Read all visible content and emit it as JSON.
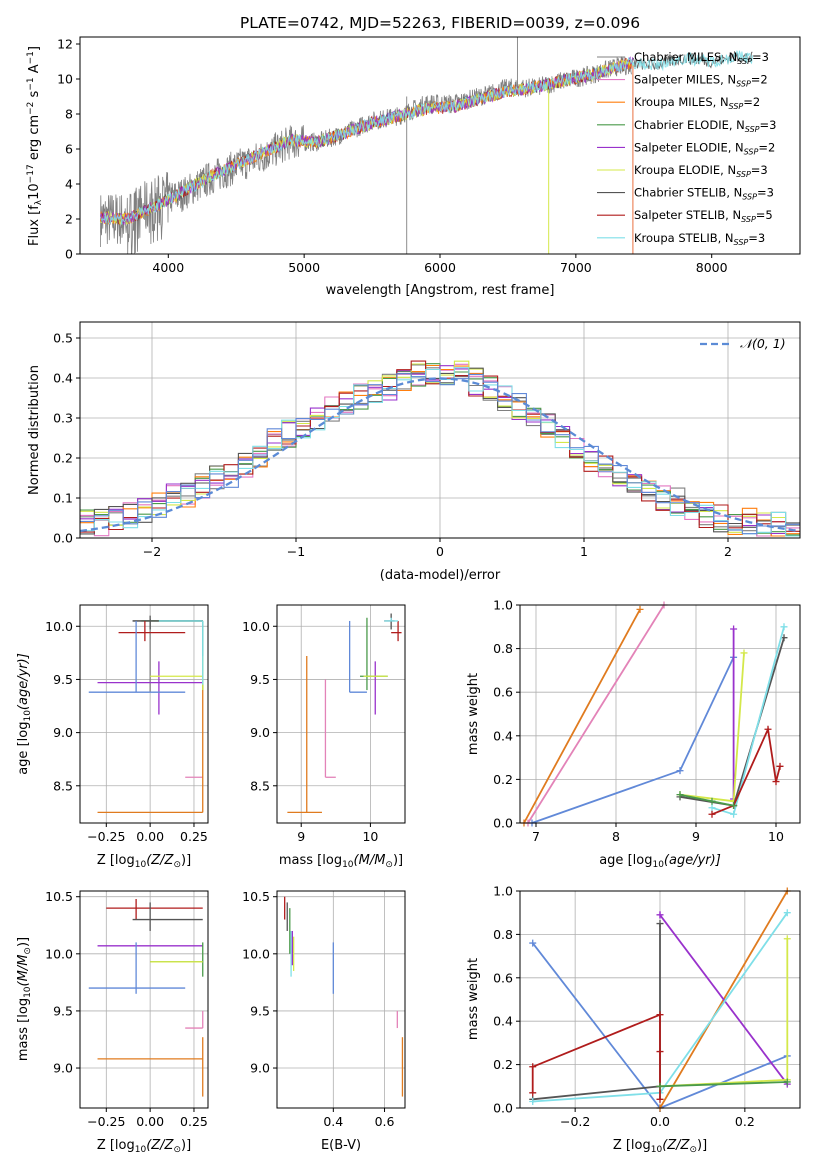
{
  "colors": {
    "chabrier_miles": "#808080",
    "salpeter_miles": "#e377c2",
    "kroupa_miles": "#ff7f0e",
    "chabrier_elodie": "#4a9a4a",
    "salpeter_elodie": "#9932cc",
    "kroupa_elodie": "#d4e84a",
    "chabrier_stelib": "#555555",
    "salpeter_stelib": "#b01c1c",
    "kroupa_stelib": "#7fdfe8",
    "gaussian": "#5b8bd6",
    "data": "#808080",
    "orange": "#e07b1f",
    "pink": "#e383b8",
    "blue": "#6189d8"
  },
  "chart_data": [
    {
      "type": "line",
      "panel": "spectrum",
      "title": "PLATE=0742, MJD=52263, FIBERID=0039, z=0.096",
      "xlabel": "wavelength [Angstrom, rest frame]",
      "ylabel": "Flux [f",
      "ylabel_sub": "λ",
      "ylabel_rest": "10",
      "ylabel_exp1": "−17",
      "ylabel_unit": " erg cm",
      "ylabel_exp2": "−2",
      "ylabel_unit2": " s",
      "ylabel_exp3": "−1",
      "ylabel_unit3": " A",
      "ylabel_exp4": "−1",
      "ylabel_end": "]",
      "xlim": [
        3350,
        8650
      ],
      "ylim": [
        0,
        12.4
      ],
      "xticks": [
        "4000",
        "5000",
        "6000",
        "7000",
        "8000"
      ],
      "yticks": [
        "0",
        "2",
        "4",
        "6",
        "8",
        "10",
        "12"
      ],
      "legend": [
        {
          "name": "Chabrier MILES, N",
          "sub": "SSP",
          "val": "=3",
          "color": "#808080"
        },
        {
          "name": "Salpeter MILES, N",
          "sub": "SSP",
          "val": "=2",
          "color": "#e377c2"
        },
        {
          "name": "Kroupa MILES, N",
          "sub": "SSP",
          "val": "=2",
          "color": "#ff7f0e"
        },
        {
          "name": "Chabrier ELODIE, N",
          "sub": "SSP",
          "val": "=3",
          "color": "#4a9a4a"
        },
        {
          "name": "Salpeter ELODIE, N",
          "sub": "SSP",
          "val": "=2",
          "color": "#9932cc"
        },
        {
          "name": "Kroupa ELODIE, N",
          "sub": "SSP",
          "val": "=3",
          "color": "#d4e84a"
        },
        {
          "name": "Chabrier STELIB, N",
          "sub": "SSP",
          "val": "=3",
          "color": "#555555"
        },
        {
          "name": "Salpeter STELIB, N",
          "sub": "SSP",
          "val": "=5",
          "color": "#b01c1c"
        },
        {
          "name": "Kroupa STELIB, N",
          "sub": "SSP",
          "val": "=3",
          "color": "#7fdfe8"
        }
      ],
      "data_envelope": {
        "x": [
          3500,
          3700,
          3900,
          4100,
          4300,
          4500,
          4700,
          4900,
          5100,
          5300,
          5500,
          5700,
          5900,
          6100,
          6300,
          6500,
          6700,
          6900,
          7100,
          7300,
          7420
        ],
        "y": [
          2.0,
          2.0,
          2.9,
          3.4,
          4.3,
          5.0,
          5.6,
          6.4,
          6.4,
          6.9,
          7.6,
          7.9,
          8.6,
          8.6,
          9.0,
          9.5,
          9.5,
          9.9,
          10.2,
          10.7,
          10.8
        ]
      },
      "model_envelope": {
        "x": [
          3500,
          3700,
          3900,
          4100,
          4300,
          4500,
          4700,
          4900,
          5100,
          5300,
          5500,
          5700,
          5900,
          6100,
          6300,
          6500,
          6700,
          6900,
          7100,
          7300,
          7400,
          7600,
          7800,
          8000,
          8200,
          8300
        ],
        "y": [
          2.1,
          2.0,
          2.7,
          3.5,
          4.4,
          5.1,
          5.8,
          6.5,
          6.4,
          6.9,
          7.5,
          7.9,
          8.3,
          8.4,
          8.9,
          9.3,
          9.5,
          9.9,
          10.2,
          10.7,
          10.9,
          10.8,
          11.2,
          11.0,
          11.3,
          11.2
        ]
      }
    },
    {
      "type": "line",
      "panel": "residual_histogram",
      "xlabel": "(data-model)/error",
      "ylabel": "Normed distribution",
      "xlim": [
        -2.5,
        2.5
      ],
      "ylim": [
        0,
        0.54
      ],
      "xticks": [
        "−2",
        "−1",
        "0",
        "1",
        "2"
      ],
      "yticks": [
        "0.0",
        "0.1",
        "0.2",
        "0.3",
        "0.4",
        "0.5"
      ],
      "legend": [
        {
          "name": "𝒩(0, 1)",
          "color": "#5b8bd6"
        }
      ],
      "bin_edges": [
        -2.5,
        -2.4,
        -2.3,
        -2.2,
        -2.1,
        -2.0,
        -1.9,
        -1.8,
        -1.7,
        -1.6,
        -1.5,
        -1.4,
        -1.3,
        -1.2,
        -1.1,
        -1.0,
        -0.9,
        -0.8,
        -0.7,
        -0.6,
        -0.5,
        -0.4,
        -0.3,
        -0.2,
        -0.1,
        0.0,
        0.1,
        0.2,
        0.3,
        0.4,
        0.5,
        0.6,
        0.7,
        0.8,
        0.9,
        1.0,
        1.1,
        1.2,
        1.3,
        1.4,
        1.5,
        1.6,
        1.7,
        1.8,
        1.9,
        2.0,
        2.1,
        2.2,
        2.3,
        2.4,
        2.5
      ],
      "typical_counts": [
        0.04,
        0.04,
        0.05,
        0.06,
        0.07,
        0.08,
        0.1,
        0.11,
        0.13,
        0.15,
        0.16,
        0.18,
        0.21,
        0.24,
        0.26,
        0.28,
        0.3,
        0.32,
        0.34,
        0.35,
        0.37,
        0.38,
        0.4,
        0.41,
        0.41,
        0.41,
        0.41,
        0.39,
        0.37,
        0.35,
        0.33,
        0.31,
        0.28,
        0.25,
        0.22,
        0.2,
        0.18,
        0.15,
        0.13,
        0.12,
        0.1,
        0.09,
        0.07,
        0.06,
        0.05,
        0.04,
        0.04,
        0.03,
        0.03,
        0.02
      ]
    },
    {
      "type": "scatter",
      "panel": "age_vs_Z",
      "xlabel": "Z [log",
      "xlabel_sub": "10",
      "xlabel_end": "(Z/Z",
      "xlabel_sun": "⊙",
      "xlabel_close": ")]",
      "ylabel": "age  [log",
      "ylabel_sub": "10",
      "ylabel_end": "(age/yr)]",
      "xlim": [
        -0.4,
        0.33
      ],
      "ylim": [
        8.15,
        10.2
      ],
      "xticks": [
        "−0.25",
        "0.00",
        "0.25"
      ],
      "yticks": [
        "8.5",
        "9.0",
        "9.5",
        "10.0"
      ],
      "errorbars": [
        {
          "x": 0.0,
          "y": 10.05,
          "x0": -0.1,
          "x1": 0.3,
          "y0": 9.38,
          "y1": 10.07,
          "color": "#808080"
        },
        {
          "x": 0.2,
          "y": 8.58,
          "x0": 0.2,
          "x1": 0.3,
          "y0": 8.58,
          "y1": 8.58,
          "color": "#e383b8"
        },
        {
          "x": 0.3,
          "y": 8.25,
          "x0": -0.3,
          "x1": 0.3,
          "y0": 8.25,
          "y1": 9.72,
          "color": "#e07b1f"
        },
        {
          "x": 0.3,
          "y": 10.05,
          "x0": -0.05,
          "x1": 0.3,
          "y0": 9.4,
          "y1": 10.05,
          "color": "#4a9a4a"
        },
        {
          "x": 0.05,
          "y": 9.47,
          "x0": -0.3,
          "x1": 0.3,
          "y0": 9.17,
          "y1": 9.67,
          "color": "#9932cc"
        },
        {
          "x": 0.3,
          "y": 9.53,
          "x0": 0.0,
          "x1": 0.3,
          "y0": 9.4,
          "y1": 9.72,
          "color": "#d4e84a"
        },
        {
          "x": 0.0,
          "y": 10.05,
          "x0": -0.1,
          "x1": 0.3,
          "y0": 9.97,
          "y1": 10.1,
          "color": "#555555"
        },
        {
          "x": -0.03,
          "y": 9.94,
          "x0": -0.18,
          "x1": 0.2,
          "y0": 9.86,
          "y1": 10.05,
          "color": "#b01c1c"
        },
        {
          "x": 0.3,
          "y": 10.05,
          "x0": 0.05,
          "x1": 0.3,
          "y0": 9.45,
          "y1": 10.05,
          "color": "#7fdfe8"
        },
        {
          "x": -0.08,
          "y": 9.38,
          "x0": -0.35,
          "x1": 0.2,
          "y0": 9.38,
          "y1": 10.05,
          "color": "#6189d8"
        }
      ]
    },
    {
      "type": "scatter",
      "panel": "age_vs_mass",
      "xlabel": "mass [log",
      "xlabel_sub": "10",
      "xlabel_end": "(M/M",
      "xlabel_sun": "⊙",
      "xlabel_close": ")]",
      "xlim": [
        8.65,
        10.5
      ],
      "ylim": [
        8.15,
        10.2
      ],
      "xticks": [
        "9",
        "10"
      ],
      "yticks": [
        "8.5",
        "9.0",
        "9.5",
        "10.0"
      ],
      "errorbars": [
        {
          "x": 9.08,
          "y": 8.25,
          "x0": 8.8,
          "x1": 9.3,
          "y0": 8.25,
          "y1": 9.72,
          "color": "#e07b1f"
        },
        {
          "x": 9.35,
          "y": 8.58,
          "x0": 9.35,
          "x1": 9.5,
          "y0": 8.58,
          "y1": 9.5,
          "color": "#e383b8"
        },
        {
          "x": 9.7,
          "y": 9.38,
          "x0": 9.7,
          "x1": 9.95,
          "y0": 9.38,
          "y1": 10.05,
          "color": "#6189d8"
        },
        {
          "x": 9.95,
          "y": 9.53,
          "x0": 9.85,
          "x1": 10.25,
          "y0": 9.4,
          "y1": 10.08,
          "color": "#4a9a4a"
        },
        {
          "x": 10.07,
          "y": 9.47,
          "x0": 10.07,
          "x1": 10.07,
          "y0": 9.17,
          "y1": 9.67,
          "color": "#9932cc"
        },
        {
          "x": 9.93,
          "y": 9.53,
          "x0": 9.9,
          "x1": 10.25,
          "y0": 9.53,
          "y1": 9.53,
          "color": "#d4e84a"
        },
        {
          "x": 10.3,
          "y": 10.05,
          "x0": 10.2,
          "x1": 10.35,
          "y0": 9.97,
          "y1": 10.12,
          "color": "#555555"
        },
        {
          "x": 10.4,
          "y": 9.94,
          "x0": 10.3,
          "x1": 10.45,
          "y0": 9.86,
          "y1": 10.05,
          "color": "#b01c1c"
        },
        {
          "x": 10.3,
          "y": 10.05,
          "x0": 10.2,
          "x1": 10.4,
          "y0": 10.05,
          "y1": 10.08,
          "color": "#7fdfe8"
        }
      ]
    },
    {
      "type": "line",
      "panel": "mass_weight_vs_age",
      "xlabel": "age  [log",
      "xlabel_sub": "10",
      "xlabel_end": "(age/yr)]",
      "ylabel": "mass weight",
      "xlim": [
        6.8,
        10.3
      ],
      "ylim": [
        0,
        1
      ],
      "xticks": [
        "7",
        "8",
        "9",
        "10"
      ],
      "yticks": [
        "0.0",
        "0.2",
        "0.4",
        "0.6",
        "0.8",
        "1.0"
      ],
      "series": [
        {
          "x": [
            6.85,
            8.3
          ],
          "y": [
            0.0,
            0.98
          ],
          "color": "#e07b1f"
        },
        {
          "x": [
            6.9,
            8.6
          ],
          "y": [
            0.0,
            1.0
          ],
          "color": "#e383b8"
        },
        {
          "x": [
            6.95,
            8.8,
            9.47
          ],
          "y": [
            0.0,
            0.24,
            0.76
          ],
          "color": "#6189d8"
        },
        {
          "x": [
            9.47,
            9.47
          ],
          "y": [
            0.11,
            0.89
          ],
          "color": "#9932cc"
        },
        {
          "x": [
            8.8,
            9.47,
            9.6
          ],
          "y": [
            0.13,
            0.1,
            0.78
          ],
          "color": "#d4e84a"
        },
        {
          "x": [
            8.8,
            9.47,
            10.1
          ],
          "y": [
            0.12,
            0.08,
            0.85
          ],
          "color": "#555555"
        },
        {
          "x": [
            9.2,
            9.47,
            10.1
          ],
          "y": [
            0.07,
            0.04,
            0.9
          ],
          "color": "#7fdfe8"
        },
        {
          "x": [
            9.2,
            9.47,
            9.9,
            10.0,
            10.05
          ],
          "y": [
            0.04,
            0.08,
            0.43,
            0.19,
            0.26
          ],
          "color": "#b01c1c"
        },
        {
          "x": [
            8.8,
            9.2,
            9.47
          ],
          "y": [
            0.13,
            0.1,
            0.08
          ],
          "color": "#4a9a4a"
        }
      ]
    },
    {
      "type": "scatter",
      "panel": "mass_vs_Z",
      "xlabel": "Z [log",
      "xlabel_sub": "10",
      "xlabel_end": "(Z/Z",
      "xlabel_sun": "⊙",
      "xlabel_close": ")]",
      "ylabel": "mass [log",
      "ylabel_sub": "10",
      "ylabel_end": "(M/M",
      "ylabel_sun": "⊙",
      "ylabel_close": ")]",
      "xlim": [
        -0.4,
        0.33
      ],
      "ylim": [
        8.65,
        10.55
      ],
      "xticks": [
        "−0.25",
        "0.00",
        "0.25"
      ],
      "yticks": [
        "9.0",
        "9.5",
        "10.0",
        "10.5"
      ],
      "errorbars": [
        {
          "x": -0.08,
          "y": 10.4,
          "x0": -0.25,
          "x1": 0.3,
          "y0": 10.3,
          "y1": 10.48,
          "color": "#b01c1c"
        },
        {
          "x": 0.0,
          "y": 10.3,
          "x0": -0.1,
          "x1": 0.3,
          "y0": 10.2,
          "y1": 10.45,
          "color": "#555555"
        },
        {
          "x": 0.05,
          "y": 10.07,
          "x0": -0.3,
          "x1": 0.3,
          "y0": 10.07,
          "y1": 10.07,
          "color": "#9932cc"
        },
        {
          "x": 0.3,
          "y": 9.93,
          "x0": 0.0,
          "x1": 0.3,
          "y0": 9.8,
          "y1": 10.1,
          "color": "#4a9a4a"
        },
        {
          "x": 0.3,
          "y": 9.93,
          "x0": 0.0,
          "x1": 0.3,
          "y0": 9.93,
          "y1": 9.93,
          "color": "#d4e84a"
        },
        {
          "x": -0.08,
          "y": 9.7,
          "x0": -0.35,
          "x1": 0.2,
          "y0": 9.65,
          "y1": 10.1,
          "color": "#6189d8"
        },
        {
          "x": 0.3,
          "y": 9.35,
          "x0": 0.2,
          "x1": 0.3,
          "y0": 9.35,
          "y1": 9.5,
          "color": "#e383b8"
        },
        {
          "x": 0.3,
          "y": 9.08,
          "x0": -0.3,
          "x1": 0.3,
          "y0": 8.75,
          "y1": 9.27,
          "color": "#e07b1f"
        }
      ]
    },
    {
      "type": "scatter",
      "panel": "mass_vs_ebv",
      "xlabel": "E(B-V)",
      "xlim": [
        0.18,
        0.68
      ],
      "ylim": [
        8.65,
        10.55
      ],
      "xticks": [
        "0.4",
        "0.6"
      ],
      "yticks": [
        "9.0",
        "9.5",
        "10.0",
        "10.5"
      ],
      "errorbars": [
        {
          "x": 0.21,
          "y": 10.4,
          "y0": 10.3,
          "y1": 10.5,
          "color": "#b01c1c"
        },
        {
          "x": 0.22,
          "y": 10.3,
          "y0": 10.2,
          "y1": 10.45,
          "color": "#555555"
        },
        {
          "x": 0.23,
          "y": 10.2,
          "y0": 10.0,
          "y1": 10.4,
          "color": "#4a9a4a"
        },
        {
          "x": 0.235,
          "y": 10.1,
          "y0": 9.8,
          "y1": 10.2,
          "color": "#7fdfe8"
        },
        {
          "x": 0.24,
          "y": 10.05,
          "y0": 9.9,
          "y1": 10.2,
          "color": "#9932cc"
        },
        {
          "x": 0.245,
          "y": 10.0,
          "y0": 9.85,
          "y1": 10.15,
          "color": "#d4e84a"
        },
        {
          "x": 0.4,
          "y": 9.85,
          "y0": 9.65,
          "y1": 10.1,
          "color": "#6189d8"
        },
        {
          "x": 0.65,
          "y": 9.42,
          "y0": 9.35,
          "y1": 9.5,
          "color": "#e383b8"
        },
        {
          "x": 0.67,
          "y": 9.0,
          "y0": 8.75,
          "y1": 9.27,
          "color": "#e07b1f"
        }
      ]
    },
    {
      "type": "line",
      "panel": "mass_weight_vs_Z",
      "xlabel": "Z [log",
      "xlabel_sub": "10",
      "xlabel_end": "(Z/Z",
      "xlabel_sun": "⊙",
      "xlabel_close": ")]",
      "ylabel": "mass weight",
      "xlim": [
        -0.33,
        0.33
      ],
      "ylim": [
        0,
        1
      ],
      "xticks": [
        "−0.2",
        "0.0",
        "0.2"
      ],
      "yticks": [
        "0.0",
        "0.2",
        "0.4",
        "0.6",
        "0.8",
        "1.0"
      ],
      "series": [
        {
          "x": [
            -0.3,
            0.0,
            0.3
          ],
          "y": [
            0.76,
            0.0,
            0.24
          ],
          "color": "#6189d8"
        },
        {
          "x": [
            0.0,
            0.3
          ],
          "y": [
            0.0,
            1.0
          ],
          "color": "#e07b1f"
        },
        {
          "x": [
            0.0,
            0.0,
            0.3
          ],
          "y": [
            0.89,
            0.89,
            0.11
          ],
          "color": "#9932cc"
        },
        {
          "x": [
            -0.3,
            0.0,
            0.0
          ],
          "y": [
            0.04,
            0.1,
            0.85
          ],
          "color": "#555555"
        },
        {
          "x": [
            0.0,
            0.3,
            0.3
          ],
          "y": [
            0.1,
            0.13,
            0.78
          ],
          "color": "#d4e84a"
        },
        {
          "x": [
            -0.3,
            0.0,
            0.3
          ],
          "y": [
            0.03,
            0.07,
            0.9
          ],
          "color": "#7fdfe8"
        },
        {
          "x": [
            -0.3,
            -0.3,
            0.0,
            0.0,
            0.0
          ],
          "y": [
            0.07,
            0.19,
            0.43,
            0.26,
            0.04
          ],
          "color": "#b01c1c"
        },
        {
          "x": [
            0.0,
            0.3
          ],
          "y": [
            0.1,
            0.12
          ],
          "color": "#4a9a4a"
        }
      ]
    }
  ]
}
